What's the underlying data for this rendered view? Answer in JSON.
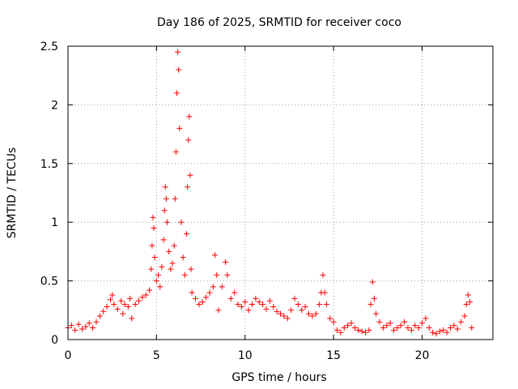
{
  "chart_data": {
    "type": "scatter",
    "title": "Day 186 of 2025, SRMTID for receiver coco",
    "xlabel": "GPS time / hours",
    "ylabel": "SRMTID / TECUs",
    "xlim": [
      0,
      24
    ],
    "ylim": [
      0,
      2.5
    ],
    "xticks": [
      0,
      5,
      10,
      15,
      20
    ],
    "xtick_labels": [
      "0",
      "5",
      "10",
      "15",
      "20"
    ],
    "yticks": [
      0,
      0.5,
      1,
      1.5,
      2,
      2.5
    ],
    "ytick_labels": [
      "0",
      "0.5",
      "1",
      "1.5",
      "2",
      "2.5"
    ],
    "grid": true,
    "marker": "+",
    "color": "#ff0000",
    "series": [
      {
        "name": "SRMTID",
        "points": [
          [
            0.0,
            0.1
          ],
          [
            0.2,
            0.12
          ],
          [
            0.4,
            0.08
          ],
          [
            0.6,
            0.13
          ],
          [
            0.8,
            0.09
          ],
          [
            1.0,
            0.11
          ],
          [
            1.2,
            0.14
          ],
          [
            1.4,
            0.1
          ],
          [
            1.6,
            0.15
          ],
          [
            1.8,
            0.2
          ],
          [
            2.0,
            0.24
          ],
          [
            2.2,
            0.28
          ],
          [
            2.4,
            0.34
          ],
          [
            2.5,
            0.38
          ],
          [
            2.6,
            0.3
          ],
          [
            2.8,
            0.26
          ],
          [
            3.0,
            0.33
          ],
          [
            3.1,
            0.22
          ],
          [
            3.2,
            0.3
          ],
          [
            3.4,
            0.28
          ],
          [
            3.5,
            0.35
          ],
          [
            3.6,
            0.18
          ],
          [
            3.8,
            0.3
          ],
          [
            4.0,
            0.33
          ],
          [
            4.2,
            0.36
          ],
          [
            4.4,
            0.38
          ],
          [
            4.6,
            0.42
          ],
          [
            4.7,
            0.6
          ],
          [
            4.75,
            0.8
          ],
          [
            4.8,
            1.04
          ],
          [
            4.85,
            0.95
          ],
          [
            4.9,
            0.7
          ],
          [
            5.0,
            0.5
          ],
          [
            5.1,
            0.55
          ],
          [
            5.2,
            0.45
          ],
          [
            5.3,
            0.62
          ],
          [
            5.4,
            0.85
          ],
          [
            5.45,
            1.1
          ],
          [
            5.5,
            1.3
          ],
          [
            5.55,
            1.2
          ],
          [
            5.6,
            1.0
          ],
          [
            5.7,
            0.75
          ],
          [
            5.8,
            0.6
          ],
          [
            5.9,
            0.65
          ],
          [
            6.0,
            0.8
          ],
          [
            6.05,
            1.2
          ],
          [
            6.1,
            1.6
          ],
          [
            6.15,
            2.1
          ],
          [
            6.2,
            2.45
          ],
          [
            6.25,
            2.3
          ],
          [
            6.3,
            1.8
          ],
          [
            6.4,
            1.0
          ],
          [
            6.5,
            0.7
          ],
          [
            6.6,
            0.55
          ],
          [
            6.7,
            0.9
          ],
          [
            6.75,
            1.3
          ],
          [
            6.8,
            1.7
          ],
          [
            6.85,
            1.9
          ],
          [
            6.9,
            1.4
          ],
          [
            6.95,
            0.6
          ],
          [
            7.0,
            0.4
          ],
          [
            7.2,
            0.35
          ],
          [
            7.4,
            0.3
          ],
          [
            7.6,
            0.32
          ],
          [
            7.8,
            0.36
          ],
          [
            8.0,
            0.4
          ],
          [
            8.2,
            0.45
          ],
          [
            8.3,
            0.72
          ],
          [
            8.4,
            0.55
          ],
          [
            8.5,
            0.25
          ],
          [
            8.7,
            0.45
          ],
          [
            8.9,
            0.66
          ],
          [
            9.0,
            0.55
          ],
          [
            9.2,
            0.35
          ],
          [
            9.4,
            0.4
          ],
          [
            9.6,
            0.3
          ],
          [
            9.8,
            0.28
          ],
          [
            10.0,
            0.32
          ],
          [
            10.2,
            0.25
          ],
          [
            10.4,
            0.3
          ],
          [
            10.6,
            0.35
          ],
          [
            10.8,
            0.32
          ],
          [
            11.0,
            0.3
          ],
          [
            11.2,
            0.26
          ],
          [
            11.4,
            0.33
          ],
          [
            11.6,
            0.28
          ],
          [
            11.8,
            0.24
          ],
          [
            12.0,
            0.22
          ],
          [
            12.2,
            0.2
          ],
          [
            12.4,
            0.18
          ],
          [
            12.6,
            0.25
          ],
          [
            12.8,
            0.35
          ],
          [
            13.0,
            0.3
          ],
          [
            13.2,
            0.25
          ],
          [
            13.4,
            0.28
          ],
          [
            13.6,
            0.22
          ],
          [
            13.8,
            0.2
          ],
          [
            14.0,
            0.22
          ],
          [
            14.2,
            0.3
          ],
          [
            14.3,
            0.4
          ],
          [
            14.4,
            0.55
          ],
          [
            14.5,
            0.4
          ],
          [
            14.6,
            0.3
          ],
          [
            14.8,
            0.18
          ],
          [
            15.0,
            0.15
          ],
          [
            15.2,
            0.08
          ],
          [
            15.4,
            0.06
          ],
          [
            15.6,
            0.1
          ],
          [
            15.8,
            0.12
          ],
          [
            16.0,
            0.14
          ],
          [
            16.2,
            0.1
          ],
          [
            16.4,
            0.08
          ],
          [
            16.6,
            0.07
          ],
          [
            16.8,
            0.06
          ],
          [
            17.0,
            0.08
          ],
          [
            17.1,
            0.3
          ],
          [
            17.2,
            0.49
          ],
          [
            17.3,
            0.35
          ],
          [
            17.4,
            0.22
          ],
          [
            17.6,
            0.15
          ],
          [
            17.8,
            0.1
          ],
          [
            18.0,
            0.12
          ],
          [
            18.2,
            0.14
          ],
          [
            18.4,
            0.08
          ],
          [
            18.6,
            0.1
          ],
          [
            18.8,
            0.12
          ],
          [
            19.0,
            0.15
          ],
          [
            19.2,
            0.1
          ],
          [
            19.4,
            0.08
          ],
          [
            19.6,
            0.12
          ],
          [
            19.8,
            0.1
          ],
          [
            20.0,
            0.14
          ],
          [
            20.2,
            0.18
          ],
          [
            20.4,
            0.1
          ],
          [
            20.6,
            0.06
          ],
          [
            20.8,
            0.05
          ],
          [
            21.0,
            0.07
          ],
          [
            21.2,
            0.08
          ],
          [
            21.4,
            0.06
          ],
          [
            21.6,
            0.1
          ],
          [
            21.8,
            0.12
          ],
          [
            22.0,
            0.09
          ],
          [
            22.2,
            0.15
          ],
          [
            22.4,
            0.2
          ],
          [
            22.5,
            0.3
          ],
          [
            22.6,
            0.38
          ],
          [
            22.7,
            0.32
          ],
          [
            22.8,
            0.1
          ]
        ]
      }
    ]
  }
}
